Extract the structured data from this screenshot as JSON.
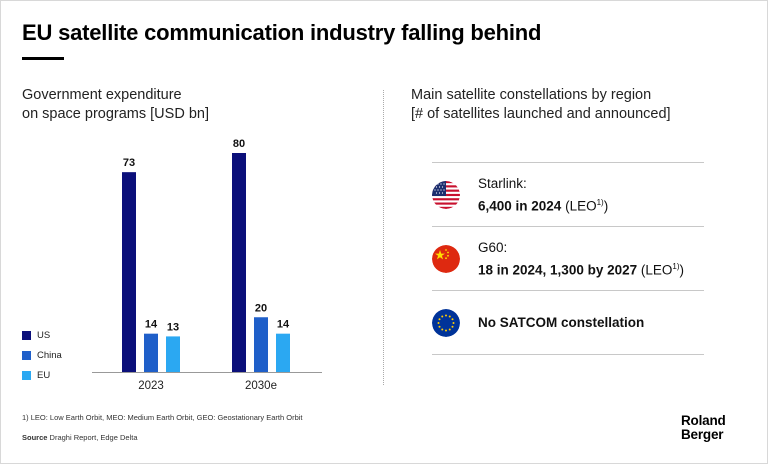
{
  "header": {
    "title": "EU satellite communication industry falling behind"
  },
  "left_panel": {
    "subtitle_line1": "Government expenditure",
    "subtitle_line2": "on space programs [USD bn]"
  },
  "right_panel": {
    "subtitle_line1": "Main satellite constellations by region",
    "subtitle_line2": "[# of satellites launched and announced]",
    "rows": [
      {
        "flag": "us-flag-icon",
        "name": "Starlink:",
        "detail": "6,400 in 2024",
        "suffix": "(LEO",
        "sup": "1)",
        "close": ")"
      },
      {
        "flag": "china-flag-icon",
        "name": "G60:",
        "detail": "18 in 2024, 1,300 by 2027",
        "suffix": "(LEO",
        "sup": "1)",
        "close": ")"
      },
      {
        "flag": "eu-flag-icon",
        "text": "No SATCOM constellation"
      }
    ]
  },
  "chart_data": {
    "type": "bar",
    "categories": [
      "2023",
      "2030e"
    ],
    "series": [
      {
        "name": "US",
        "values": [
          73,
          80
        ],
        "color": "#0b0f7a"
      },
      {
        "name": "China",
        "values": [
          14,
          20
        ],
        "color": "#1f5fc9"
      },
      {
        "name": "EU",
        "values": [
          13,
          14
        ],
        "color": "#2ba8f2"
      }
    ],
    "title": "",
    "xlabel": "",
    "ylabel": "",
    "ylim": [
      0,
      80
    ],
    "grid": false,
    "legend": "left"
  },
  "footer": {
    "footnote": "1) LEO: Low Earth Orbit, MEO: Medium Earth Orbit, GEO: Geostationary Earth Orbit",
    "source_label": "Source",
    "source_text": "Draghi Report, Edge Delta",
    "logo_line1": "Roland",
    "logo_line2": "Berger"
  }
}
